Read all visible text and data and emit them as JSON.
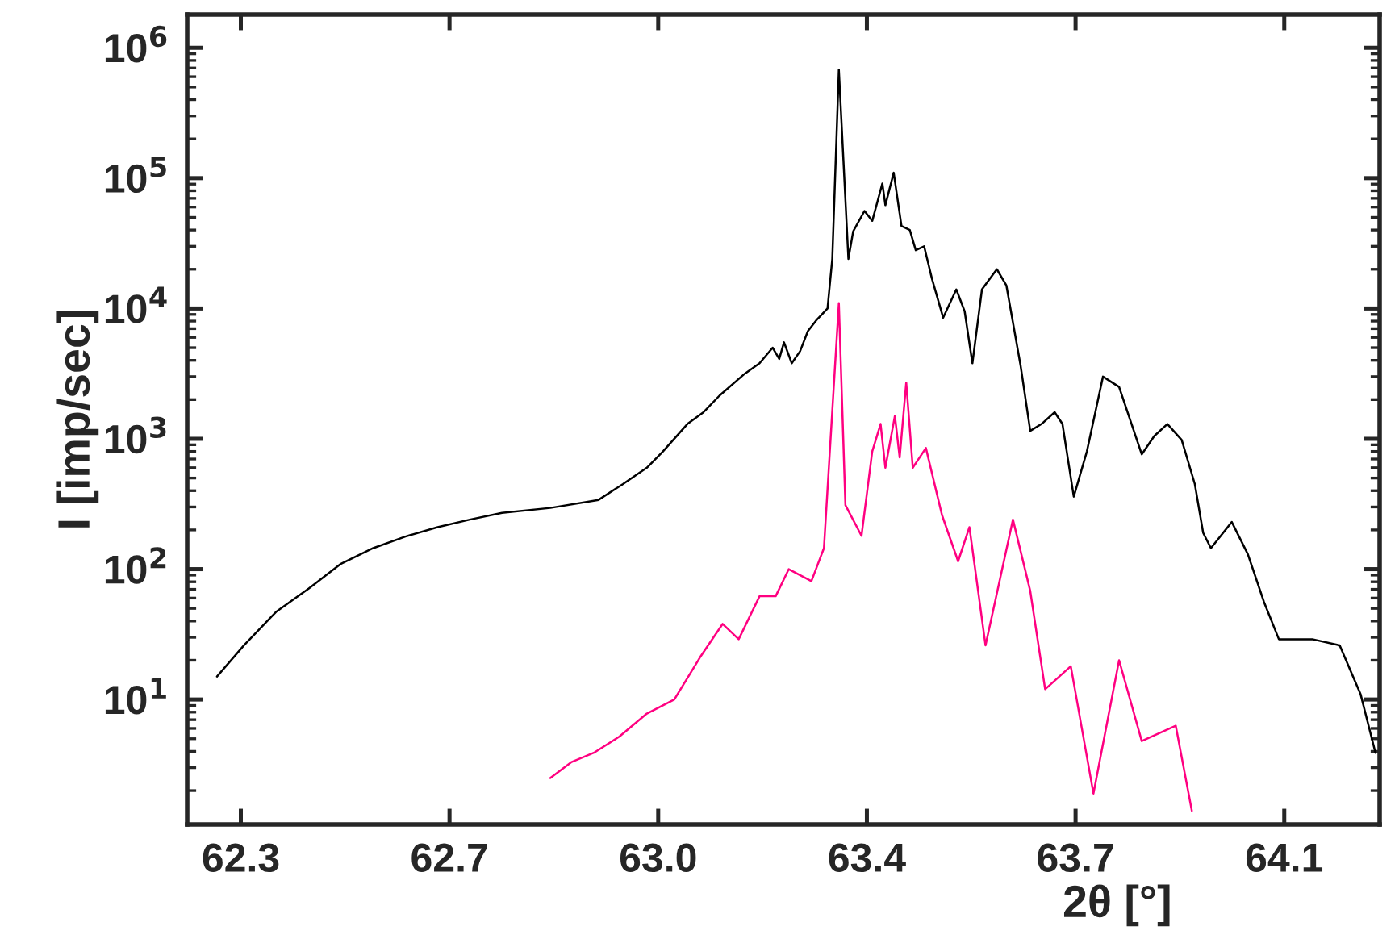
{
  "chart_data": {
    "type": "line",
    "xlabel": "2θ [°]",
    "ylabel": "I [imp/sec]",
    "log": "y",
    "grid": false,
    "marker": "none",
    "line_style": "solid",
    "xlim": [
      62.21,
      64.21
    ],
    "ylim": [
      1.1,
      1800000
    ],
    "xticks": [
      {
        "value": 62.3,
        "label": "62.3"
      },
      {
        "value": 62.65,
        "label": "62.7"
      },
      {
        "value": 63.0,
        "label": "63.0"
      },
      {
        "value": 63.35,
        "label": "63.4"
      },
      {
        "value": 63.7,
        "label": "63.7"
      },
      {
        "value": 64.05,
        "label": "64.1"
      }
    ],
    "yticks": [
      {
        "value": 10,
        "label": "10$^{1}$"
      },
      {
        "value": 100,
        "label": "10$^{2}$"
      },
      {
        "value": 1000,
        "label": "10$^{3}$"
      },
      {
        "value": 10000,
        "label": "10$^{4}$"
      },
      {
        "value": 100000,
        "label": "10$^{5}$"
      },
      {
        "value": 1000000,
        "label": "10$^{6}$"
      }
    ],
    "series": [
      {
        "color": "#000000",
        "x": [
          62.26,
          62.305,
          62.359,
          62.414,
          62.468,
          62.522,
          62.576,
          62.63,
          62.684,
          62.738,
          62.819,
          62.9,
          62.941,
          62.981,
          63.008,
          63.049,
          63.076,
          63.103,
          63.143,
          63.17,
          63.192,
          63.203,
          63.211,
          63.224,
          63.238,
          63.251,
          63.265,
          63.284,
          63.292,
          63.303,
          63.319,
          63.327,
          63.346,
          63.359,
          63.376,
          63.381,
          63.395,
          63.408,
          63.422,
          63.432,
          63.446,
          63.459,
          63.478,
          63.5,
          63.514,
          63.527,
          63.543,
          63.568,
          63.584,
          63.608,
          63.624,
          63.643,
          63.665,
          63.678,
          63.697,
          63.719,
          63.746,
          63.773,
          63.811,
          63.832,
          63.854,
          63.878,
          63.9,
          63.914,
          63.927,
          63.962,
          63.989,
          64.016,
          64.041,
          64.097,
          64.143,
          64.178,
          64.203
        ],
        "values": [
          15,
          26,
          47,
          71,
          110,
          145,
          178,
          210,
          240,
          270,
          295,
          340,
          450,
          600,
          800,
          1300,
          1600,
          2150,
          3100,
          3800,
          5000,
          4100,
          5500,
          3800,
          4700,
          6700,
          8100,
          10000,
          24000,
          680000,
          24000,
          39000,
          56000,
          47000,
          91000,
          62000,
          110000,
          43000,
          40000,
          28000,
          30000,
          17000,
          8500,
          14000,
          9500,
          3800,
          14000,
          20000,
          15000,
          3600,
          1150,
          1300,
          1600,
          1300,
          360,
          800,
          3000,
          2500,
          760,
          1050,
          1300,
          980,
          450,
          190,
          145,
          230,
          130,
          56,
          29,
          29,
          26,
          11,
          3.9
        ]
      },
      {
        "color": "#ff0080",
        "x": [
          62.819,
          62.854,
          62.892,
          62.935,
          62.981,
          63.027,
          63.07,
          63.108,
          63.135,
          63.17,
          63.197,
          63.219,
          63.257,
          63.278,
          63.303,
          63.314,
          63.341,
          63.359,
          63.373,
          63.381,
          63.397,
          63.405,
          63.416,
          63.427,
          63.449,
          63.476,
          63.503,
          63.522,
          63.549,
          63.595,
          63.624,
          63.649,
          63.692,
          63.73,
          63.773,
          63.811,
          63.868,
          63.895
        ],
        "values": [
          2.5,
          3.3,
          3.9,
          5.2,
          7.8,
          10,
          21,
          38,
          29,
          62,
          62,
          100,
          81,
          145,
          11000,
          310,
          180,
          800,
          1300,
          600,
          1500,
          720,
          2700,
          600,
          850,
          260,
          115,
          210,
          26,
          240,
          68,
          12,
          18,
          1.9,
          20,
          4.8,
          6.3,
          1.4
        ]
      }
    ]
  }
}
